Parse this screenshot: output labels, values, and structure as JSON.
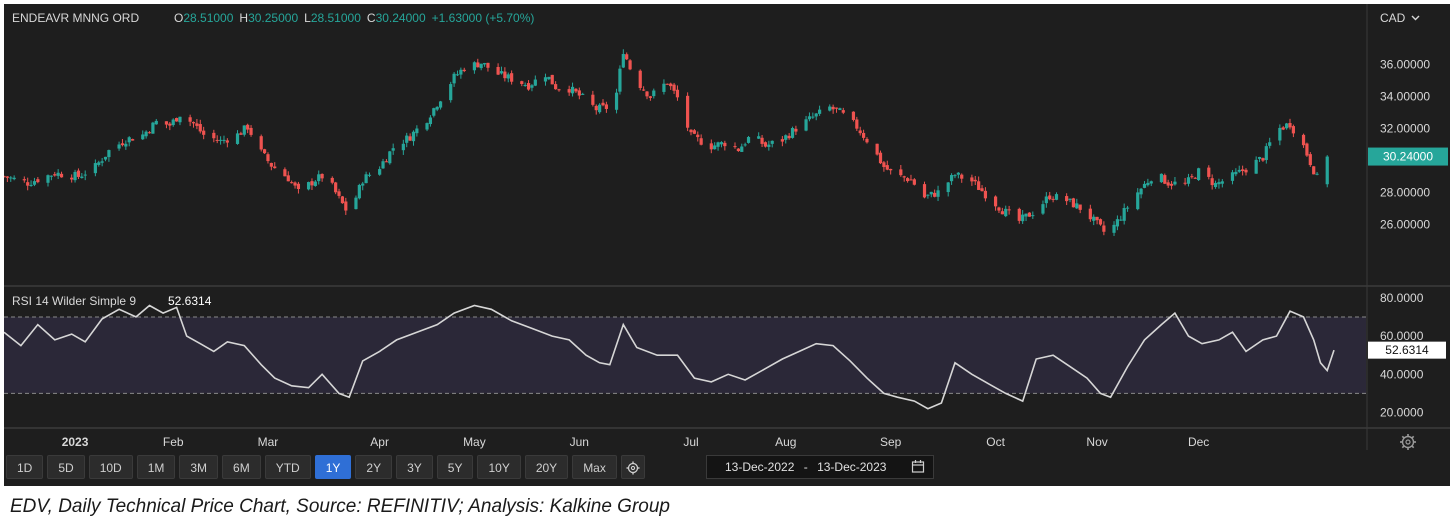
{
  "header": {
    "instrument": "ENDEAVR MNNG ORD",
    "o_label": "O",
    "o_value": "28.51000",
    "h_label": "H",
    "h_value": "30.25000",
    "l_label": "L",
    "l_value": "28.51000",
    "c_label": "C",
    "c_value": "30.24000",
    "change": "+1.63000 (+5.70%)",
    "currency": "CAD",
    "currency_chevron": "chevron-down-icon",
    "last_price_tag": "30.24000"
  },
  "rsi_header": {
    "label": "RSI 14 Wilder Simple 9",
    "value": "52.6314",
    "last_tag": "52.6314"
  },
  "toolbar": {
    "ranges": [
      "1D",
      "5D",
      "10D",
      "1M",
      "3M",
      "6M",
      "YTD",
      "1Y",
      "2Y",
      "3Y",
      "5Y",
      "10Y",
      "20Y",
      "Max"
    ],
    "active": "1Y",
    "date_from": "13-Dec-2022",
    "date_sep": "-",
    "date_to": "13-Dec-2023",
    "settings_icon": "gear-icon",
    "calendar_icon": "calendar-icon",
    "axis_settings_icon": "gear-icon"
  },
  "caption": "EDV, Daily Technical Price Chart, Source: REFINITIV; Analysis: Kalkine Group",
  "colors": {
    "up": "#26a69a",
    "down": "#ef5350",
    "background": "#1e1e1e",
    "rsi_line": "#d6d6d6",
    "tag_green": "#26a69a"
  },
  "chart_data": [
    {
      "type": "candlestick",
      "title": "",
      "x_tick_labels": [
        "2023",
        "Feb",
        "Mar",
        "Apr",
        "May",
        "Jun",
        "Jul",
        "Aug",
        "Sep",
        "Oct",
        "Nov",
        "Dec"
      ],
      "x_tick_dates": [
        "2023-01-03",
        "2023-02-01",
        "2023-03-01",
        "2023-04-03",
        "2023-05-01",
        "2023-06-01",
        "2023-07-04",
        "2023-08-01",
        "2023-09-01",
        "2023-10-02",
        "2023-11-01",
        "2023-12-01"
      ],
      "y_tick_labels": [
        "26.00000",
        "28.00000",
        "30.00000",
        "32.00000",
        "34.00000",
        "36.00000"
      ],
      "ylim": [
        23.4,
        37.9
      ],
      "grid": false,
      "close_points": [
        {
          "d": "2022-12-13",
          "v": 29.0
        },
        {
          "d": "2022-12-20",
          "v": 28.6
        },
        {
          "d": "2022-12-28",
          "v": 29.2
        },
        {
          "d": "2023-01-04",
          "v": 29.0
        },
        {
          "d": "2023-01-09",
          "v": 29.6
        },
        {
          "d": "2023-01-13",
          "v": 30.6
        },
        {
          "d": "2023-01-18",
          "v": 31.3
        },
        {
          "d": "2023-01-23",
          "v": 31.6
        },
        {
          "d": "2023-01-27",
          "v": 32.4
        },
        {
          "d": "2023-01-31",
          "v": 32.2
        },
        {
          "d": "2023-02-03",
          "v": 32.9
        },
        {
          "d": "2023-02-07",
          "v": 32.3
        },
        {
          "d": "2023-02-10",
          "v": 31.6
        },
        {
          "d": "2023-02-15",
          "v": 31.2
        },
        {
          "d": "2023-02-20",
          "v": 31.6
        },
        {
          "d": "2023-02-23",
          "v": 32.1
        },
        {
          "d": "2023-02-27",
          "v": 30.5
        },
        {
          "d": "2023-03-02",
          "v": 29.7
        },
        {
          "d": "2023-03-07",
          "v": 28.9
        },
        {
          "d": "2023-03-10",
          "v": 28.0
        },
        {
          "d": "2023-03-15",
          "v": 28.8
        },
        {
          "d": "2023-03-18",
          "v": 29.1
        },
        {
          "d": "2023-03-22",
          "v": 27.6
        },
        {
          "d": "2023-03-25",
          "v": 26.6
        },
        {
          "d": "2023-03-29",
          "v": 28.8
        },
        {
          "d": "2023-04-03",
          "v": 29.6
        },
        {
          "d": "2023-04-07",
          "v": 30.8
        },
        {
          "d": "2023-04-12",
          "v": 31.5
        },
        {
          "d": "2023-04-17",
          "v": 32.6
        },
        {
          "d": "2023-04-21",
          "v": 33.9
        },
        {
          "d": "2023-04-25",
          "v": 35.2
        },
        {
          "d": "2023-04-28",
          "v": 35.8
        },
        {
          "d": "2023-05-03",
          "v": 36.1
        },
        {
          "d": "2023-05-08",
          "v": 35.4
        },
        {
          "d": "2023-05-12",
          "v": 35.1
        },
        {
          "d": "2023-05-17",
          "v": 34.7
        },
        {
          "d": "2023-05-22",
          "v": 35.4
        },
        {
          "d": "2023-05-25",
          "v": 34.6
        },
        {
          "d": "2023-05-29",
          "v": 34.5
        },
        {
          "d": "2023-06-02",
          "v": 33.9
        },
        {
          "d": "2023-06-06",
          "v": 33.2
        },
        {
          "d": "2023-06-09",
          "v": 33.3
        },
        {
          "d": "2023-06-12",
          "v": 34.2
        },
        {
          "d": "2023-06-14",
          "v": 36.9
        },
        {
          "d": "2023-06-17",
          "v": 35.2
        },
        {
          "d": "2023-06-22",
          "v": 34.0
        },
        {
          "d": "2023-06-27",
          "v": 34.9
        },
        {
          "d": "2023-06-30",
          "v": 33.9
        },
        {
          "d": "2023-07-04",
          "v": 31.5
        },
        {
          "d": "2023-07-10",
          "v": 30.9
        },
        {
          "d": "2023-07-14",
          "v": 31.1
        },
        {
          "d": "2023-07-18",
          "v": 30.7
        },
        {
          "d": "2023-07-22",
          "v": 31.6
        },
        {
          "d": "2023-07-26",
          "v": 30.9
        },
        {
          "d": "2023-07-31",
          "v": 31.3
        },
        {
          "d": "2023-08-04",
          "v": 32.0
        },
        {
          "d": "2023-08-09",
          "v": 32.7
        },
        {
          "d": "2023-08-14",
          "v": 33.3
        },
        {
          "d": "2023-08-17",
          "v": 33.0
        },
        {
          "d": "2023-08-22",
          "v": 32.1
        },
        {
          "d": "2023-08-26",
          "v": 31.0
        },
        {
          "d": "2023-08-30",
          "v": 29.6
        },
        {
          "d": "2023-09-02",
          "v": 29.1
        },
        {
          "d": "2023-09-07",
          "v": 28.8
        },
        {
          "d": "2023-09-11",
          "v": 27.7
        },
        {
          "d": "2023-09-15",
          "v": 28.0
        },
        {
          "d": "2023-09-20",
          "v": 29.1
        },
        {
          "d": "2023-09-25",
          "v": 28.7
        },
        {
          "d": "2023-09-30",
          "v": 27.7
        },
        {
          "d": "2023-10-04",
          "v": 26.9
        },
        {
          "d": "2023-10-09",
          "v": 26.2
        },
        {
          "d": "2023-10-14",
          "v": 26.9
        },
        {
          "d": "2023-10-18",
          "v": 27.8
        },
        {
          "d": "2023-10-23",
          "v": 27.5
        },
        {
          "d": "2023-10-28",
          "v": 26.9
        },
        {
          "d": "2023-11-01",
          "v": 26.0
        },
        {
          "d": "2023-11-04",
          "v": 25.3
        },
        {
          "d": "2023-11-08",
          "v": 26.5
        },
        {
          "d": "2023-11-13",
          "v": 28.0
        },
        {
          "d": "2023-11-18",
          "v": 29.2
        },
        {
          "d": "2023-11-22",
          "v": 28.6
        },
        {
          "d": "2023-11-27",
          "v": 28.5
        },
        {
          "d": "2023-12-01",
          "v": 29.3
        },
        {
          "d": "2023-12-06",
          "v": 28.5
        },
        {
          "d": "2023-12-11",
          "v": 29.0
        },
        {
          "d": "2023-12-16",
          "v": 29.6
        },
        {
          "d": "2023-12-20",
          "v": 30.2
        },
        {
          "d": "2023-12-24",
          "v": 31.9
        },
        {
          "d": "2023-12-28",
          "v": 32.3
        },
        {
          "d": "2024-01-01",
          "v": 30.9
        },
        {
          "d": "2024-01-05",
          "v": 28.9
        },
        {
          "d": "2024-01-08",
          "v": 30.24
        }
      ]
    },
    {
      "type": "line",
      "title": "RSI 14 Wilder Simple 9",
      "y_tick_labels": [
        "20.0000",
        "40.0000",
        "60.0000",
        "80.0000"
      ],
      "ylim": [
        14,
        82
      ],
      "bands": [
        30,
        70
      ],
      "grid": false,
      "points": [
        {
          "d": "2022-12-13",
          "v": 62
        },
        {
          "d": "2022-12-18",
          "v": 55
        },
        {
          "d": "2022-12-23",
          "v": 66
        },
        {
          "d": "2022-12-28",
          "v": 58
        },
        {
          "d": "2023-01-02",
          "v": 61
        },
        {
          "d": "2023-01-06",
          "v": 57
        },
        {
          "d": "2023-01-11",
          "v": 69
        },
        {
          "d": "2023-01-16",
          "v": 74
        },
        {
          "d": "2023-01-21",
          "v": 70
        },
        {
          "d": "2023-01-25",
          "v": 76
        },
        {
          "d": "2023-01-29",
          "v": 72
        },
        {
          "d": "2023-02-02",
          "v": 75
        },
        {
          "d": "2023-02-05",
          "v": 60
        },
        {
          "d": "2023-02-09",
          "v": 56
        },
        {
          "d": "2023-02-13",
          "v": 52
        },
        {
          "d": "2023-02-17",
          "v": 57
        },
        {
          "d": "2023-02-22",
          "v": 55
        },
        {
          "d": "2023-02-27",
          "v": 45
        },
        {
          "d": "2023-03-03",
          "v": 38
        },
        {
          "d": "2023-03-08",
          "v": 34
        },
        {
          "d": "2023-03-13",
          "v": 33
        },
        {
          "d": "2023-03-17",
          "v": 40
        },
        {
          "d": "2023-03-22",
          "v": 30
        },
        {
          "d": "2023-03-25",
          "v": 28
        },
        {
          "d": "2023-03-29",
          "v": 47
        },
        {
          "d": "2023-04-03",
          "v": 52
        },
        {
          "d": "2023-04-08",
          "v": 58
        },
        {
          "d": "2023-04-14",
          "v": 62
        },
        {
          "d": "2023-04-20",
          "v": 66
        },
        {
          "d": "2023-04-25",
          "v": 72
        },
        {
          "d": "2023-05-01",
          "v": 76
        },
        {
          "d": "2023-05-06",
          "v": 74
        },
        {
          "d": "2023-05-12",
          "v": 68
        },
        {
          "d": "2023-05-18",
          "v": 64
        },
        {
          "d": "2023-05-24",
          "v": 60
        },
        {
          "d": "2023-05-29",
          "v": 58
        },
        {
          "d": "2023-06-03",
          "v": 50
        },
        {
          "d": "2023-06-07",
          "v": 46
        },
        {
          "d": "2023-06-10",
          "v": 45
        },
        {
          "d": "2023-06-14",
          "v": 66
        },
        {
          "d": "2023-06-18",
          "v": 54
        },
        {
          "d": "2023-06-24",
          "v": 50
        },
        {
          "d": "2023-06-30",
          "v": 50
        },
        {
          "d": "2023-07-05",
          "v": 38
        },
        {
          "d": "2023-07-10",
          "v": 36
        },
        {
          "d": "2023-07-15",
          "v": 40
        },
        {
          "d": "2023-07-20",
          "v": 37
        },
        {
          "d": "2023-07-26",
          "v": 43
        },
        {
          "d": "2023-07-31",
          "v": 48
        },
        {
          "d": "2023-08-05",
          "v": 52
        },
        {
          "d": "2023-08-10",
          "v": 56
        },
        {
          "d": "2023-08-15",
          "v": 55
        },
        {
          "d": "2023-08-20",
          "v": 47
        },
        {
          "d": "2023-08-25",
          "v": 38
        },
        {
          "d": "2023-08-30",
          "v": 30
        },
        {
          "d": "2023-09-03",
          "v": 28
        },
        {
          "d": "2023-09-08",
          "v": 26
        },
        {
          "d": "2023-09-12",
          "v": 22
        },
        {
          "d": "2023-09-16",
          "v": 25
        },
        {
          "d": "2023-09-20",
          "v": 46
        },
        {
          "d": "2023-09-25",
          "v": 40
        },
        {
          "d": "2023-09-30",
          "v": 35
        },
        {
          "d": "2023-10-05",
          "v": 30
        },
        {
          "d": "2023-10-10",
          "v": 26
        },
        {
          "d": "2023-10-14",
          "v": 48
        },
        {
          "d": "2023-10-19",
          "v": 50
        },
        {
          "d": "2023-10-24",
          "v": 44
        },
        {
          "d": "2023-10-29",
          "v": 38
        },
        {
          "d": "2023-11-02",
          "v": 30
        },
        {
          "d": "2023-11-05",
          "v": 28
        },
        {
          "d": "2023-11-10",
          "v": 44
        },
        {
          "d": "2023-11-15",
          "v": 58
        },
        {
          "d": "2023-11-20",
          "v": 66
        },
        {
          "d": "2023-11-24",
          "v": 72
        },
        {
          "d": "2023-11-28",
          "v": 60
        },
        {
          "d": "2023-12-02",
          "v": 56
        },
        {
          "d": "2023-12-07",
          "v": 58
        },
        {
          "d": "2023-12-11",
          "v": 62
        },
        {
          "d": "2023-12-15",
          "v": 52
        },
        {
          "d": "2023-12-20",
          "v": 58
        },
        {
          "d": "2023-12-24",
          "v": 60
        },
        {
          "d": "2023-12-28",
          "v": 73
        },
        {
          "d": "2024-01-01",
          "v": 70
        },
        {
          "d": "2024-01-04",
          "v": 58
        },
        {
          "d": "2024-01-06",
          "v": 46
        },
        {
          "d": "2024-01-08",
          "v": 42
        },
        {
          "d": "2024-01-10",
          "v": 52.63
        }
      ]
    }
  ]
}
